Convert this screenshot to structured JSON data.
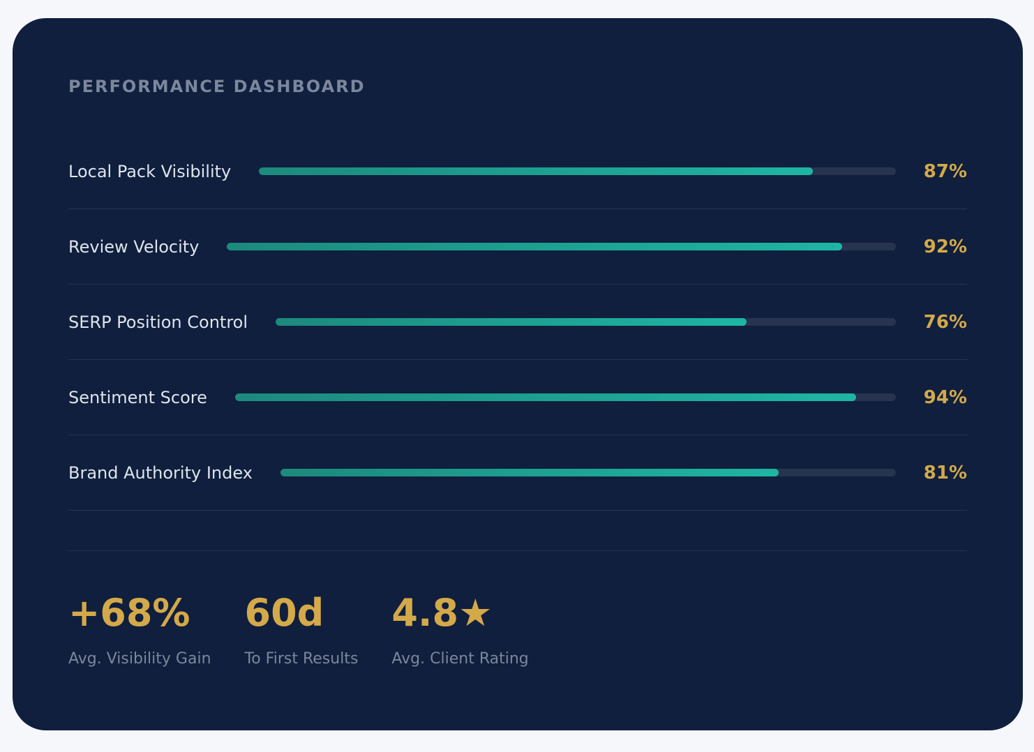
{
  "dashboard": {
    "title": "PERFORMANCE DASHBOARD",
    "metrics": [
      {
        "label": "Local Pack Visibility",
        "value": "87%",
        "percent": 87
      },
      {
        "label": "Review Velocity",
        "value": "92%",
        "percent": 92
      },
      {
        "label": "SERP Position Control",
        "value": "76%",
        "percent": 76
      },
      {
        "label": "Sentiment Score",
        "value": "94%",
        "percent": 94
      },
      {
        "label": "Brand Authority Index",
        "value": "81%",
        "percent": 81
      }
    ],
    "stats": [
      {
        "value": "+68%",
        "label": "Avg. Visibility Gain"
      },
      {
        "value": "60d",
        "label": "To First Results"
      },
      {
        "value": "4.8★",
        "label": "Avg. Client Rating"
      }
    ]
  },
  "colors": {
    "background": "#0f1f3d",
    "accent_gold": "#d4a94a",
    "bar_teal": "#1eb5a4",
    "bar_track": "#26344f"
  }
}
